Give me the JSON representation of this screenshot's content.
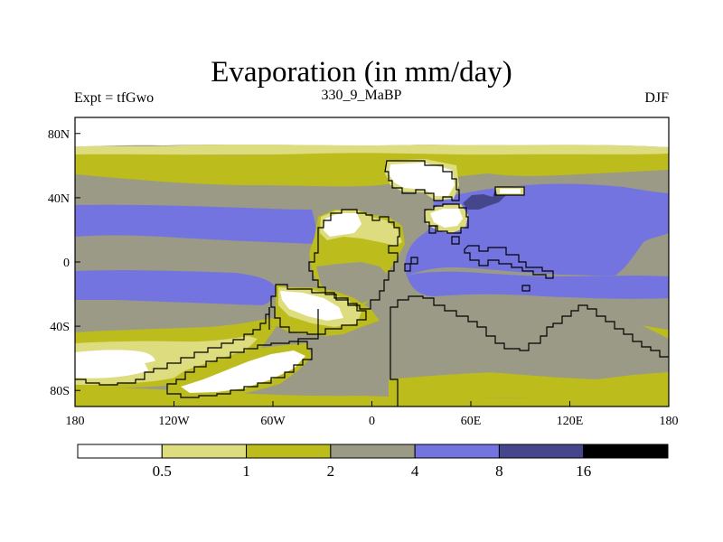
{
  "title": "Evaporation (in mm/day)",
  "subtitle_left": "Expt = tfGwo",
  "subtitle_center": "330_9_MaBP",
  "subtitle_right": "DJF",
  "colors": {
    "c0": "#ffffff",
    "c1": "#dddd80",
    "c2": "#bcbc1c",
    "c3": "#9a9a86",
    "c4": "#7474e0",
    "c5": "#46468c",
    "c6": "#000000",
    "coast": "#000000"
  },
  "chart_data": {
    "type": "heatmap",
    "title": "Evaporation (in mm/day)",
    "xlabel": "",
    "ylabel": "",
    "xlim": [
      -180,
      180
    ],
    "ylim": [
      -90,
      90
    ],
    "x_ticks": [
      "180",
      "120W",
      "60W",
      "0",
      "60E",
      "120E",
      "180"
    ],
    "y_ticks": [
      "80N",
      "40N",
      "0",
      "40S",
      "80S"
    ],
    "colorbar_levels": [
      "0.5",
      "1",
      "2",
      "4",
      "8",
      "16"
    ],
    "colorbar_unit": "mm/day"
  }
}
